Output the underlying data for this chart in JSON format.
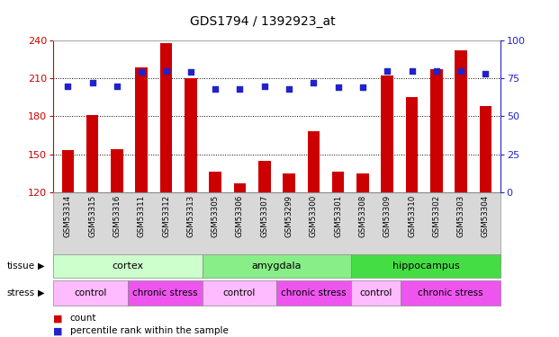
{
  "title": "GDS1794 / 1392923_at",
  "samples": [
    "GSM53314",
    "GSM53315",
    "GSM53316",
    "GSM53311",
    "GSM53312",
    "GSM53313",
    "GSM53305",
    "GSM53306",
    "GSM53307",
    "GSM53299",
    "GSM53300",
    "GSM53301",
    "GSM53308",
    "GSM53309",
    "GSM53310",
    "GSM53302",
    "GSM53303",
    "GSM53304"
  ],
  "counts": [
    153,
    181,
    154,
    219,
    238,
    210,
    136,
    127,
    145,
    135,
    168,
    136,
    135,
    212,
    195,
    217,
    232,
    188
  ],
  "percentiles": [
    70,
    72,
    70,
    79,
    80,
    79,
    68,
    68,
    70,
    68,
    72,
    69,
    69,
    80,
    80,
    80,
    80,
    78
  ],
  "ylim_left": [
    120,
    240
  ],
  "ylim_right": [
    0,
    100
  ],
  "yticks_left": [
    120,
    150,
    180,
    210,
    240
  ],
  "yticks_right": [
    0,
    25,
    50,
    75,
    100
  ],
  "bar_color": "#cc0000",
  "dot_color": "#2222cc",
  "axis_color_left": "#cc0000",
  "axis_color_right": "#2222cc",
  "grid_yticks": [
    150,
    180,
    210
  ],
  "tissue_groups": [
    {
      "label": "cortex",
      "start": 0,
      "end": 5
    },
    {
      "label": "amygdala",
      "start": 6,
      "end": 11
    },
    {
      "label": "hippocampus",
      "start": 12,
      "end": 17
    }
  ],
  "stress_groups": [
    {
      "label": "control",
      "start": 0,
      "end": 2
    },
    {
      "label": "chronic stress",
      "start": 3,
      "end": 5
    },
    {
      "label": "control",
      "start": 6,
      "end": 8
    },
    {
      "label": "chronic stress",
      "start": 9,
      "end": 11
    },
    {
      "label": "control",
      "start": 12,
      "end": 13
    },
    {
      "label": "chronic stress",
      "start": 14,
      "end": 17
    }
  ],
  "tissue_colors": {
    "cortex": "#ccffcc",
    "amygdala": "#88ee88",
    "hippocampus": "#44dd44"
  },
  "stress_colors": {
    "control": "#ffbbff",
    "chronic stress": "#ee55ee"
  },
  "legend_count_label": "count",
  "legend_pct_label": "percentile rank within the sample",
  "sample_bg_color": "#d8d8d8",
  "plot_bg_color": "#ffffff"
}
